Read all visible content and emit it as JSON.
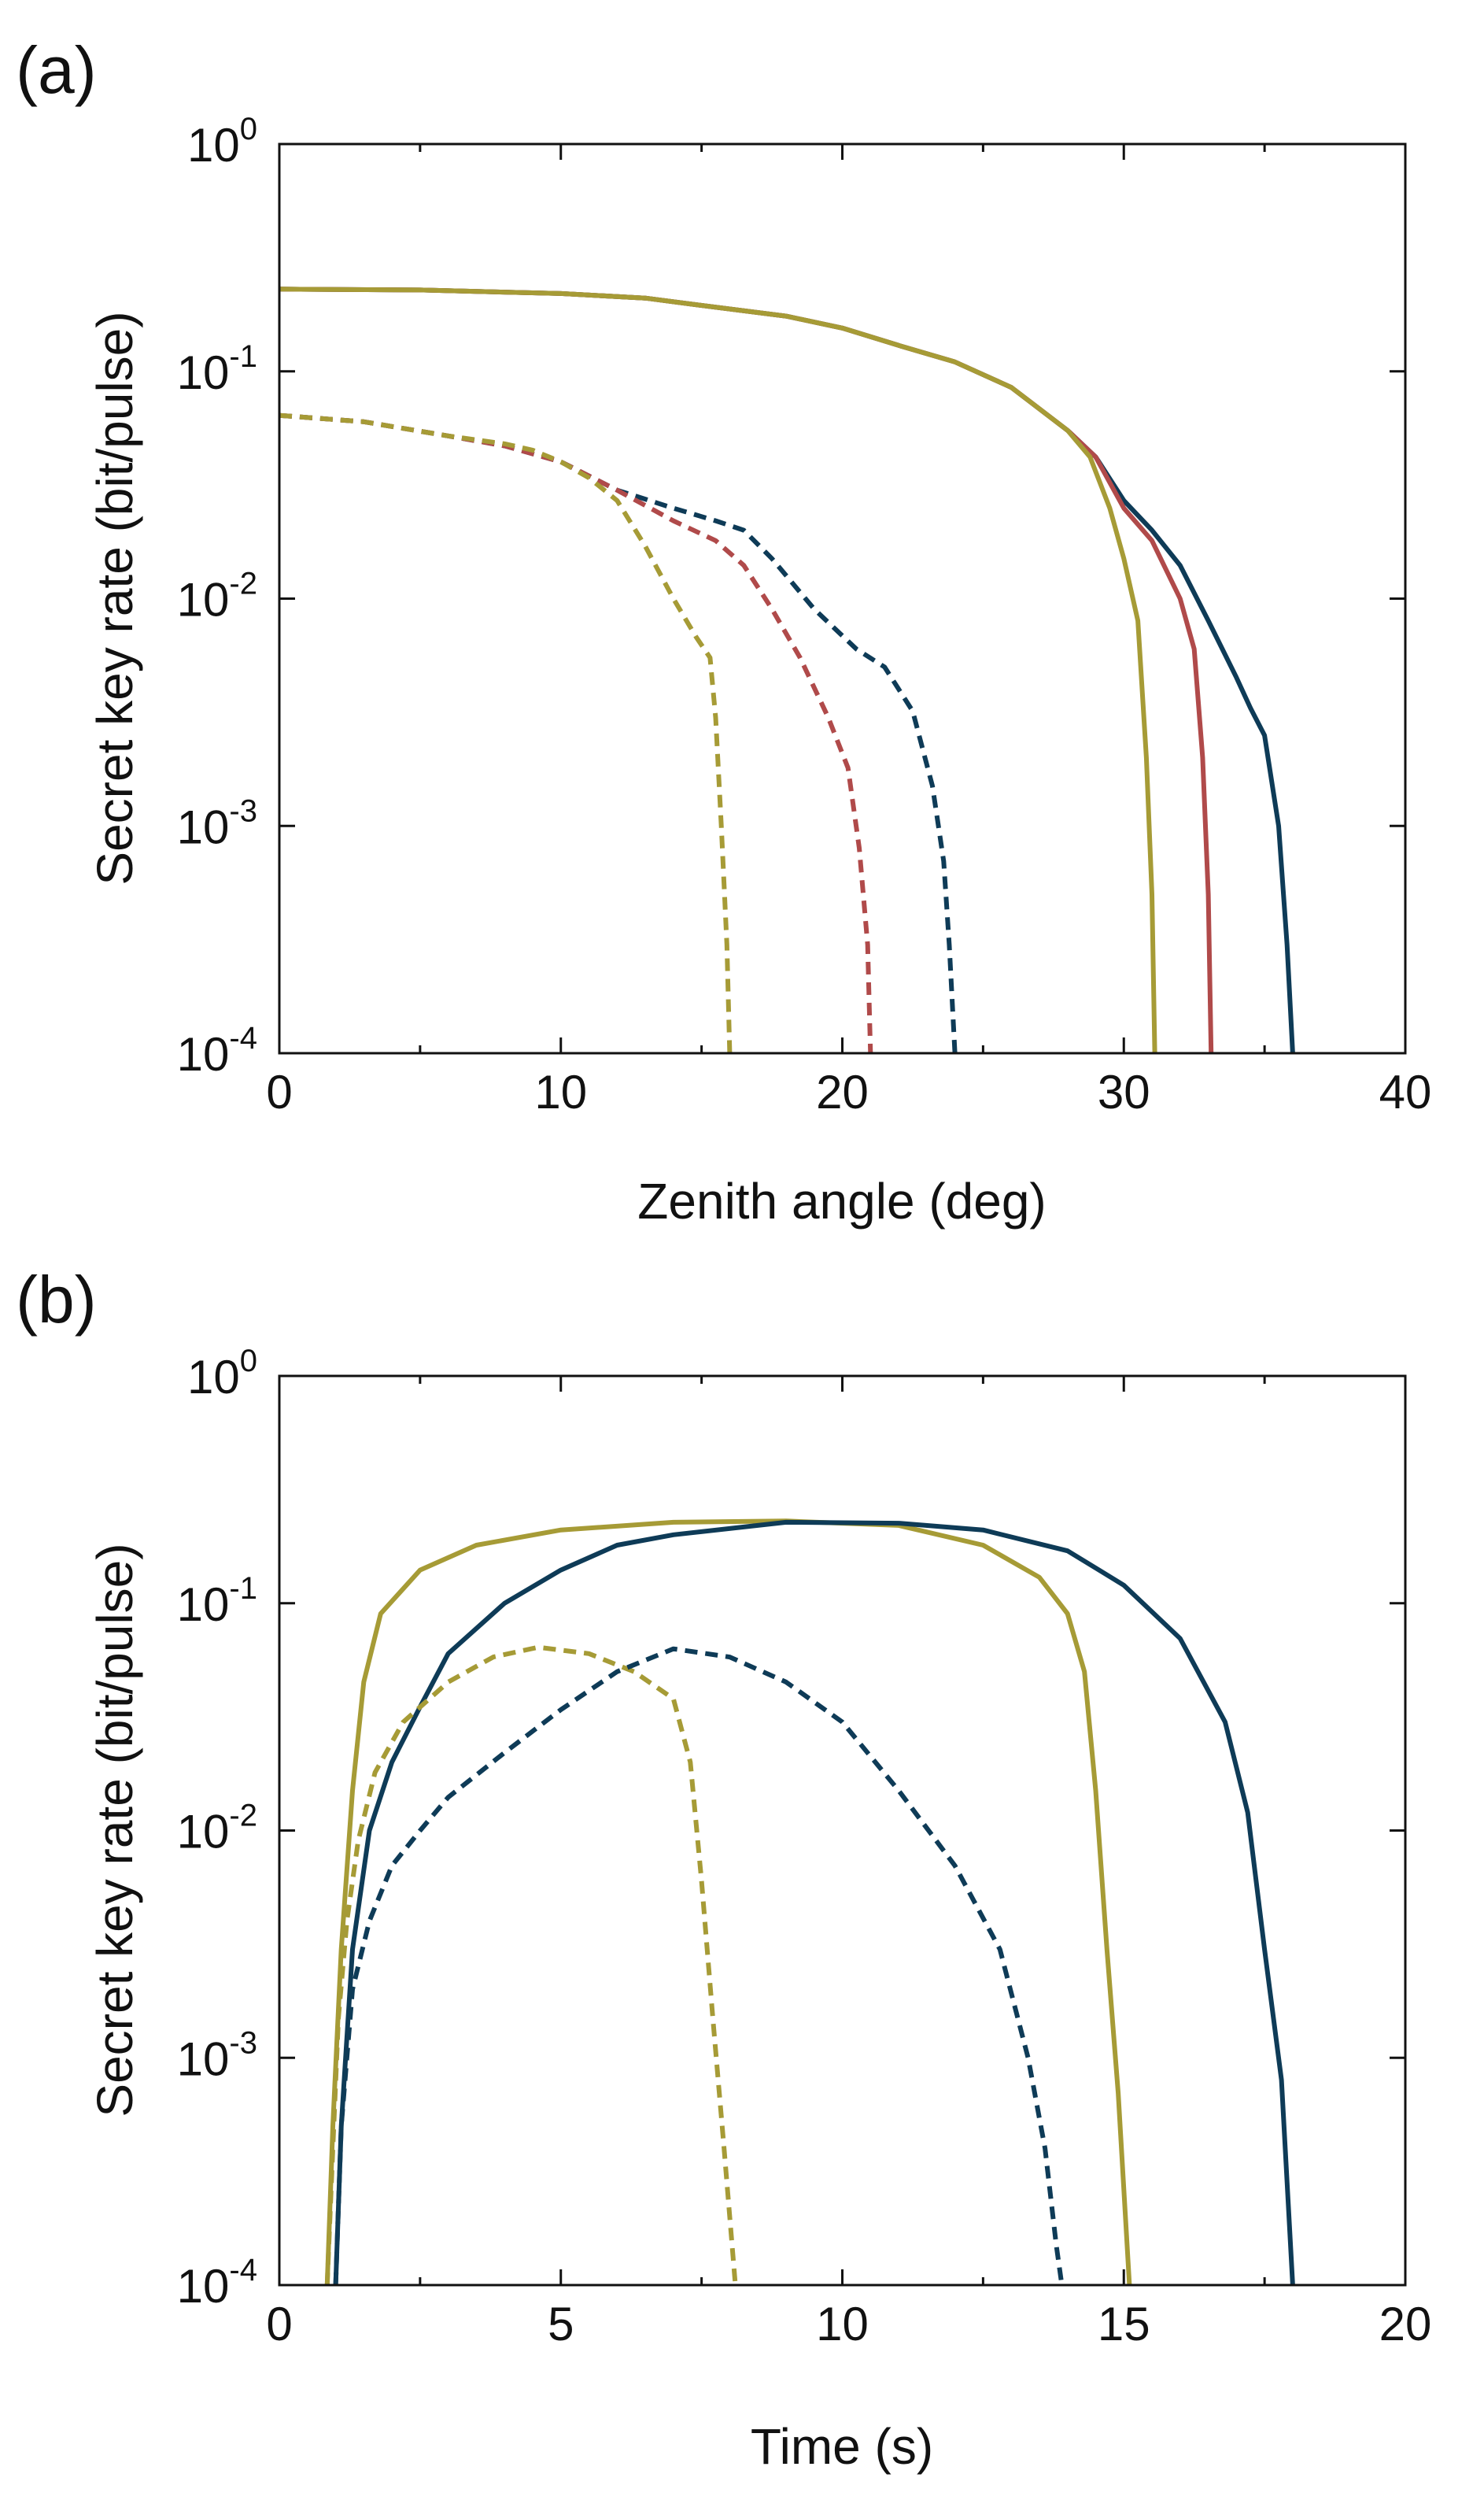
{
  "colors": {
    "olive": "#A69B36",
    "red": "#B04A4A",
    "navy": "#0E3B57",
    "axis": "#111111"
  },
  "chart_data": [
    {
      "panel": "(a)",
      "type": "line",
      "xlabel": "Zenith angle (deg)",
      "ylabel": "Secret key rate (bit/pulse)",
      "xlim": [
        0,
        40
      ],
      "ylim": [
        0.0001,
        1
      ],
      "yscale": "log",
      "xticks": [
        0,
        10,
        20,
        30,
        40
      ],
      "xtick_labels": [
        "0",
        "10",
        "20",
        "30",
        "40"
      ],
      "yticks": [
        1,
        0.1,
        0.01,
        0.001,
        0.0001
      ],
      "ytick_labels": [
        {
          "base": "10",
          "exp": "0"
        },
        {
          "base": "10",
          "exp": "-1"
        },
        {
          "base": "10",
          "exp": "-2"
        },
        {
          "base": "10",
          "exp": "-3"
        },
        {
          "base": "10",
          "exp": "-4"
        }
      ],
      "series": [
        {
          "name": "navy solid",
          "color": "navy",
          "style": "solid",
          "x": [
            0,
            5,
            10,
            13,
            15,
            18,
            20,
            22,
            24,
            26,
            28,
            29,
            30,
            31,
            32,
            33,
            34,
            34.5,
            35,
            35.5,
            35.8,
            36
          ],
          "y": [
            0.23,
            0.228,
            0.22,
            0.21,
            0.195,
            0.175,
            0.155,
            0.13,
            0.11,
            0.085,
            0.055,
            0.042,
            0.027,
            0.02,
            0.014,
            0.008,
            0.0045,
            0.0033,
            0.0025,
            0.001,
            0.0003,
            0.0001
          ]
        },
        {
          "name": "red solid",
          "color": "red",
          "style": "solid",
          "x": [
            0,
            5,
            10,
            13,
            15,
            18,
            20,
            22,
            24,
            26,
            28,
            29,
            30,
            31,
            32,
            32.5,
            32.8,
            33,
            33.1
          ],
          "y": [
            0.23,
            0.228,
            0.22,
            0.21,
            0.195,
            0.175,
            0.155,
            0.13,
            0.11,
            0.085,
            0.055,
            0.042,
            0.025,
            0.018,
            0.01,
            0.006,
            0.002,
            0.0005,
            0.0001
          ]
        },
        {
          "name": "olive solid",
          "color": "olive",
          "style": "solid",
          "x": [
            0,
            5,
            10,
            13,
            15,
            18,
            20,
            22,
            24,
            26,
            28,
            28.8,
            29.5,
            30,
            30.5,
            30.8,
            31,
            31.1
          ],
          "y": [
            0.23,
            0.228,
            0.22,
            0.21,
            0.195,
            0.175,
            0.155,
            0.13,
            0.11,
            0.085,
            0.055,
            0.042,
            0.025,
            0.015,
            0.008,
            0.002,
            0.0005,
            0.0001
          ]
        },
        {
          "name": "navy dashed",
          "color": "navy",
          "style": "dashed",
          "x": [
            0,
            3,
            6,
            8,
            10,
            12,
            14,
            15.5,
            16.5,
            17.5,
            19,
            20.5,
            21.5,
            22.5,
            23.2,
            23.6,
            23.8,
            24
          ],
          "y": [
            0.064,
            0.06,
            0.052,
            0.047,
            0.04,
            0.03,
            0.025,
            0.022,
            0.02,
            0.015,
            0.009,
            0.006,
            0.005,
            0.0032,
            0.0015,
            0.0007,
            0.0003,
            0.0001
          ]
        },
        {
          "name": "red dashed",
          "color": "red",
          "style": "dashed",
          "x": [
            0,
            3,
            6,
            8,
            10,
            12,
            14,
            15.5,
            16.5,
            17.5,
            18.5,
            19.5,
            20.2,
            20.6,
            20.9,
            21
          ],
          "y": [
            0.064,
            0.06,
            0.052,
            0.047,
            0.04,
            0.03,
            0.022,
            0.018,
            0.014,
            0.009,
            0.0055,
            0.003,
            0.0018,
            0.0008,
            0.0003,
            0.0001
          ]
        },
        {
          "name": "olive dashed",
          "color": "olive",
          "style": "dashed",
          "x": [
            0,
            3,
            6,
            8,
            9,
            10,
            11,
            12,
            13,
            14,
            14.8,
            15.3,
            15.5,
            15.7,
            15.9,
            16
          ],
          "y": [
            0.064,
            0.06,
            0.052,
            0.048,
            0.045,
            0.04,
            0.034,
            0.027,
            0.017,
            0.01,
            0.0068,
            0.0055,
            0.003,
            0.001,
            0.0003,
            0.0001
          ]
        }
      ]
    },
    {
      "panel": "(b)",
      "type": "line",
      "xlabel": "Time (s)",
      "ylabel": "Secret key rate (bit/pulse)",
      "xlim": [
        0,
        20
      ],
      "ylim": [
        0.0001,
        1
      ],
      "yscale": "log",
      "xticks": [
        0,
        5,
        10,
        15,
        20
      ],
      "xtick_labels": [
        "0",
        "5",
        "10",
        "15",
        "20"
      ],
      "yticks": [
        1,
        0.1,
        0.01,
        0.001,
        0.0001
      ],
      "ytick_labels": [
        {
          "base": "10",
          "exp": "0"
        },
        {
          "base": "10",
          "exp": "-1"
        },
        {
          "base": "10",
          "exp": "-2"
        },
        {
          "base": "10",
          "exp": "-3"
        },
        {
          "base": "10",
          "exp": "-4"
        }
      ],
      "series": [
        {
          "name": "olive solid",
          "color": "olive",
          "style": "solid",
          "x": [
            0.85,
            0.95,
            1.1,
            1.3,
            1.5,
            1.8,
            2.5,
            3.5,
            5,
            7,
            9,
            11,
            12.5,
            13.5,
            14,
            14.3,
            14.5,
            14.7,
            14.9,
            15.1
          ],
          "y": [
            0.0001,
            0.0005,
            0.003,
            0.015,
            0.045,
            0.09,
            0.14,
            0.18,
            0.21,
            0.227,
            0.23,
            0.22,
            0.18,
            0.13,
            0.09,
            0.05,
            0.015,
            0.003,
            0.0007,
            0.0001
          ]
        },
        {
          "name": "navy solid",
          "color": "navy",
          "style": "solid",
          "x": [
            1,
            1.1,
            1.3,
            1.6,
            2,
            2.5,
            3,
            4,
            5,
            6,
            7,
            9,
            11,
            12.5,
            14,
            15,
            16,
            16.8,
            17.2,
            17.5,
            17.8,
            18
          ],
          "y": [
            0.0001,
            0.0005,
            0.003,
            0.01,
            0.02,
            0.035,
            0.06,
            0.1,
            0.14,
            0.18,
            0.2,
            0.227,
            0.225,
            0.21,
            0.17,
            0.12,
            0.07,
            0.03,
            0.012,
            0.003,
            0.0008,
            0.0001
          ]
        },
        {
          "name": "olive dashed",
          "color": "olive",
          "style": "dashed",
          "x": [
            0.85,
            0.95,
            1.05,
            1.2,
            1.4,
            1.7,
            2.2,
            3,
            3.8,
            4.6,
            5.5,
            6.3,
            7,
            7.3,
            7.5,
            7.7,
            7.9,
            8.1
          ],
          "y": [
            0.0001,
            0.0004,
            0.0015,
            0.004,
            0.009,
            0.018,
            0.03,
            0.045,
            0.058,
            0.064,
            0.06,
            0.05,
            0.038,
            0.02,
            0.006,
            0.0015,
            0.0004,
            0.0001
          ]
        },
        {
          "name": "navy dashed",
          "color": "navy",
          "style": "dashed",
          "x": [
            1,
            1.1,
            1.3,
            1.6,
            2,
            2.5,
            3,
            4,
            5,
            6,
            7,
            8,
            9,
            10,
            11,
            12,
            12.8,
            13.3,
            13.6,
            13.8,
            13.9
          ],
          "y": [
            0.0001,
            0.0005,
            0.002,
            0.004,
            0.007,
            0.01,
            0.014,
            0.022,
            0.034,
            0.05,
            0.063,
            0.058,
            0.045,
            0.03,
            0.015,
            0.007,
            0.003,
            0.001,
            0.0004,
            0.00015,
            0.0001
          ]
        }
      ]
    }
  ]
}
